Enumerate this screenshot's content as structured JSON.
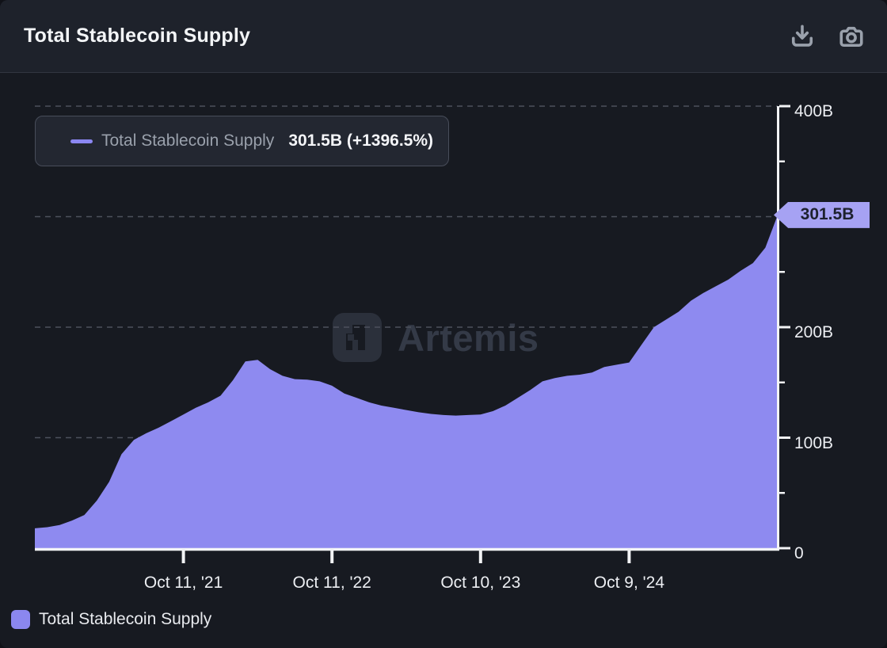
{
  "header": {
    "title": "Total Stablecoin Supply",
    "download_icon": "download-icon",
    "screenshot_icon": "camera-icon"
  },
  "tooltip": {
    "series_label": "Total Stablecoin Supply",
    "value_text": "301.5B (+1396.5%)"
  },
  "watermark": {
    "text": "Artemis"
  },
  "legend": {
    "label": "Total Stablecoin Supply"
  },
  "chart_data": {
    "type": "area",
    "title": "Total Stablecoin Supply",
    "ylabel": "",
    "xlabel": "",
    "ylim": [
      0,
      400
    ],
    "unit": "B (billions USD)",
    "grid": "horizontal-dashed",
    "legend_position": "bottom-left",
    "colors": {
      "area": "#8e8af0",
      "badge": "#a6a2f3",
      "gridline": "#4d515c",
      "axis": "#f2f3f5",
      "background": "#171a21"
    },
    "series": [
      {
        "name": "Total Stablecoin Supply",
        "x": [
          "2020-10",
          "2020-11",
          "2020-12",
          "2021-01",
          "2021-02",
          "2021-03",
          "2021-04",
          "2021-05",
          "2021-06",
          "2021-07",
          "2021-08",
          "2021-09",
          "2021-10",
          "2021-11",
          "2021-12",
          "2022-01",
          "2022-02",
          "2022-03",
          "2022-04",
          "2022-05",
          "2022-06",
          "2022-07",
          "2022-08",
          "2022-09",
          "2022-10",
          "2022-11",
          "2022-12",
          "2023-01",
          "2023-02",
          "2023-03",
          "2023-04",
          "2023-05",
          "2023-06",
          "2023-07",
          "2023-08",
          "2023-09",
          "2023-10",
          "2023-11",
          "2023-12",
          "2024-01",
          "2024-02",
          "2024-03",
          "2024-04",
          "2024-05",
          "2024-06",
          "2024-07",
          "2024-08",
          "2024-09",
          "2024-10",
          "2024-11",
          "2024-12",
          "2025-01",
          "2025-02",
          "2025-03",
          "2025-04",
          "2025-05",
          "2025-06",
          "2025-07",
          "2025-08",
          "2025-09",
          "2025-10"
        ],
        "values": [
          18,
          19,
          21,
          25,
          30,
          43,
          60,
          85,
          98,
          104,
          109,
          115,
          121,
          127,
          132,
          138,
          152,
          169,
          170.5,
          162,
          156,
          153,
          152.5,
          151,
          147,
          140,
          136,
          132,
          129,
          127,
          125,
          123,
          121.5,
          120.5,
          120,
          120.5,
          121,
          124,
          129,
          136,
          143,
          151,
          154,
          156,
          157,
          159,
          164,
          166,
          168,
          184,
          200,
          207,
          214,
          224,
          231,
          237,
          243,
          251,
          258,
          272,
          301.5
        ]
      }
    ],
    "last_value": 301.5,
    "last_value_label": "301.5B",
    "y_ticks_major": [
      {
        "value": 400,
        "label": "400B"
      },
      {
        "value": 200,
        "label": "200B"
      },
      {
        "value": 100,
        "label": "100B"
      },
      {
        "value": 0,
        "label": "0"
      }
    ],
    "y_ticks_minor": [
      350,
      250,
      150,
      50
    ],
    "y_gridlines": [
      400,
      300,
      200,
      100
    ],
    "x_ticks": [
      {
        "index": 12,
        "label": "Oct 11, '21"
      },
      {
        "index": 24,
        "label": "Oct 11, '22"
      },
      {
        "index": 36,
        "label": "Oct 10, '23"
      },
      {
        "index": 48,
        "label": "Oct 9, '24"
      }
    ]
  }
}
